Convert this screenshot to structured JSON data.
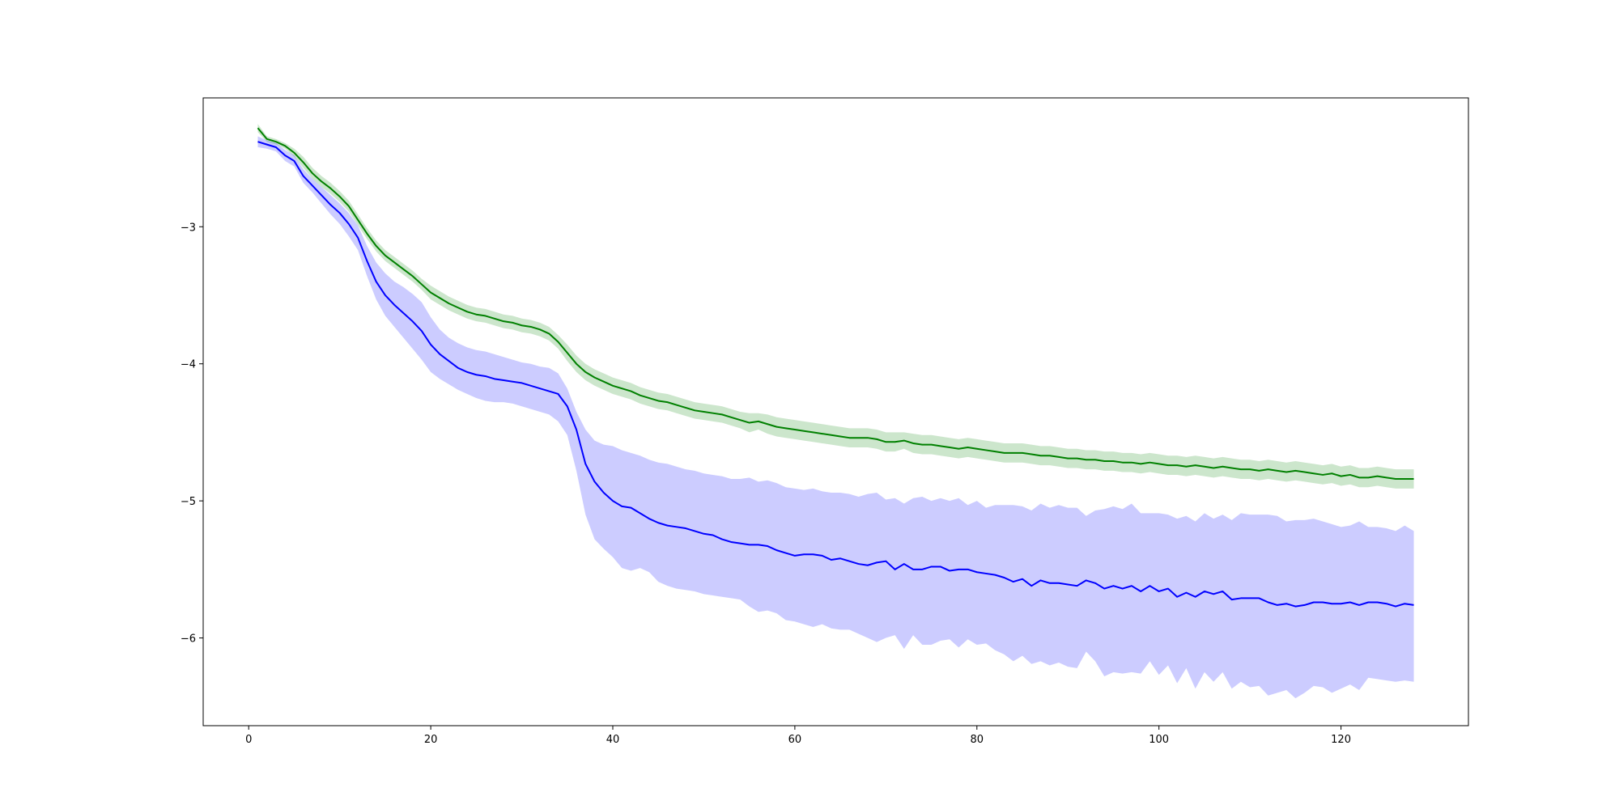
{
  "chart_data": {
    "type": "line",
    "title": "",
    "xlabel": "",
    "ylabel": "",
    "xlim": [
      -5,
      134
    ],
    "ylim": [
      -6.64,
      -2.06
    ],
    "grid": false,
    "xticks": [
      0,
      20,
      40,
      60,
      80,
      100,
      120
    ],
    "yticks": [
      -6,
      -5,
      -4,
      -3
    ],
    "ytick_labels": [
      "−6",
      "−5",
      "−4",
      "−3"
    ],
    "series": [
      {
        "color": "#008000",
        "band_color": "#008000",
        "band_opacity": 0.2,
        "x": [
          1,
          2,
          3,
          4,
          5,
          6,
          7,
          8,
          9,
          10,
          11,
          12,
          13,
          14,
          15,
          16,
          17,
          18,
          19,
          20,
          21,
          22,
          23,
          24,
          25,
          26,
          27,
          28,
          29,
          30,
          31,
          32,
          33,
          34,
          35,
          36,
          37,
          38,
          39,
          40,
          41,
          42,
          43,
          44,
          45,
          46,
          47,
          48,
          49,
          50,
          51,
          52,
          53,
          54,
          55,
          56,
          57,
          58,
          59,
          60,
          61,
          62,
          63,
          64,
          65,
          66,
          67,
          68,
          69,
          70,
          71,
          72,
          73,
          74,
          75,
          76,
          77,
          78,
          79,
          80,
          81,
          82,
          83,
          84,
          85,
          86,
          87,
          88,
          89,
          90,
          91,
          92,
          93,
          94,
          95,
          96,
          97,
          98,
          99,
          100,
          101,
          102,
          103,
          104,
          105,
          106,
          107,
          108,
          109,
          110,
          111,
          112,
          113,
          114,
          115,
          116,
          117,
          118,
          119,
          120,
          121,
          122,
          123,
          124,
          125,
          126,
          127,
          128
        ],
        "y": [
          -2.28,
          -2.36,
          -2.38,
          -2.41,
          -2.46,
          -2.53,
          -2.61,
          -2.67,
          -2.72,
          -2.78,
          -2.85,
          -2.95,
          -3.05,
          -3.14,
          -3.21,
          -3.26,
          -3.31,
          -3.36,
          -3.42,
          -3.48,
          -3.52,
          -3.56,
          -3.59,
          -3.62,
          -3.64,
          -3.65,
          -3.67,
          -3.69,
          -3.7,
          -3.72,
          -3.73,
          -3.75,
          -3.78,
          -3.84,
          -3.92,
          -4.0,
          -4.06,
          -4.1,
          -4.13,
          -4.16,
          -4.18,
          -4.2,
          -4.23,
          -4.25,
          -4.27,
          -4.28,
          -4.3,
          -4.32,
          -4.34,
          -4.35,
          -4.36,
          -4.37,
          -4.39,
          -4.41,
          -4.43,
          -4.42,
          -4.44,
          -4.46,
          -4.47,
          -4.48,
          -4.49,
          -4.5,
          -4.51,
          -4.52,
          -4.53,
          -4.54,
          -4.54,
          -4.54,
          -4.55,
          -4.57,
          -4.57,
          -4.56,
          -4.58,
          -4.59,
          -4.59,
          -4.6,
          -4.61,
          -4.62,
          -4.61,
          -4.62,
          -4.63,
          -4.64,
          -4.65,
          -4.65,
          -4.65,
          -4.66,
          -4.67,
          -4.67,
          -4.68,
          -4.69,
          -4.69,
          -4.7,
          -4.7,
          -4.71,
          -4.71,
          -4.72,
          -4.72,
          -4.73,
          -4.72,
          -4.73,
          -4.74,
          -4.74,
          -4.75,
          -4.74,
          -4.75,
          -4.76,
          -4.75,
          -4.76,
          -4.77,
          -4.77,
          -4.78,
          -4.77,
          -4.78,
          -4.79,
          -4.78,
          -4.79,
          -4.8,
          -4.81,
          -4.8,
          -4.82,
          -4.81,
          -4.83,
          -4.83,
          -4.82,
          -4.83,
          -4.84,
          -4.84,
          -4.84
        ],
        "upper": [
          -2.25,
          -2.34,
          -2.36,
          -2.39,
          -2.43,
          -2.49,
          -2.57,
          -2.63,
          -2.68,
          -2.74,
          -2.81,
          -2.91,
          -3.01,
          -3.1,
          -3.17,
          -3.22,
          -3.27,
          -3.32,
          -3.38,
          -3.43,
          -3.47,
          -3.51,
          -3.54,
          -3.57,
          -3.59,
          -3.6,
          -3.62,
          -3.64,
          -3.65,
          -3.67,
          -3.68,
          -3.7,
          -3.73,
          -3.79,
          -3.86,
          -3.94,
          -4.0,
          -4.04,
          -4.07,
          -4.1,
          -4.12,
          -4.14,
          -4.17,
          -4.19,
          -4.21,
          -4.22,
          -4.24,
          -4.26,
          -4.28,
          -4.29,
          -4.3,
          -4.31,
          -4.33,
          -4.35,
          -4.36,
          -4.36,
          -4.37,
          -4.39,
          -4.4,
          -4.41,
          -4.42,
          -4.43,
          -4.44,
          -4.45,
          -4.46,
          -4.47,
          -4.47,
          -4.47,
          -4.48,
          -4.5,
          -4.5,
          -4.5,
          -4.51,
          -4.52,
          -4.52,
          -4.53,
          -4.54,
          -4.55,
          -4.54,
          -4.55,
          -4.56,
          -4.57,
          -4.58,
          -4.58,
          -4.58,
          -4.59,
          -4.6,
          -4.6,
          -4.61,
          -4.62,
          -4.62,
          -4.63,
          -4.63,
          -4.64,
          -4.64,
          -4.65,
          -4.65,
          -4.66,
          -4.65,
          -4.66,
          -4.67,
          -4.67,
          -4.68,
          -4.67,
          -4.68,
          -4.69,
          -4.68,
          -4.69,
          -4.7,
          -4.7,
          -4.71,
          -4.7,
          -4.71,
          -4.72,
          -4.71,
          -4.72,
          -4.73,
          -4.74,
          -4.73,
          -4.75,
          -4.74,
          -4.76,
          -4.76,
          -4.75,
          -4.76,
          -4.77,
          -4.77,
          -4.77
        ],
        "lower": [
          -2.31,
          -2.38,
          -2.4,
          -2.43,
          -2.49,
          -2.57,
          -2.65,
          -2.71,
          -2.76,
          -2.82,
          -2.89,
          -2.99,
          -3.09,
          -3.18,
          -3.25,
          -3.3,
          -3.35,
          -3.4,
          -3.46,
          -3.53,
          -3.57,
          -3.61,
          -3.64,
          -3.67,
          -3.69,
          -3.7,
          -3.72,
          -3.74,
          -3.75,
          -3.77,
          -3.78,
          -3.8,
          -3.83,
          -3.89,
          -3.98,
          -4.06,
          -4.12,
          -4.16,
          -4.19,
          -4.22,
          -4.24,
          -4.26,
          -4.29,
          -4.31,
          -4.33,
          -4.34,
          -4.36,
          -4.38,
          -4.4,
          -4.41,
          -4.42,
          -4.43,
          -4.45,
          -4.47,
          -4.5,
          -4.48,
          -4.51,
          -4.53,
          -4.54,
          -4.55,
          -4.56,
          -4.57,
          -4.58,
          -4.59,
          -4.6,
          -4.61,
          -4.61,
          -4.61,
          -4.62,
          -4.64,
          -4.64,
          -4.62,
          -4.65,
          -4.66,
          -4.66,
          -4.67,
          -4.68,
          -4.69,
          -4.68,
          -4.69,
          -4.7,
          -4.71,
          -4.72,
          -4.72,
          -4.72,
          -4.73,
          -4.74,
          -4.74,
          -4.75,
          -4.76,
          -4.76,
          -4.77,
          -4.77,
          -4.78,
          -4.78,
          -4.79,
          -4.79,
          -4.8,
          -4.79,
          -4.8,
          -4.81,
          -4.81,
          -4.82,
          -4.81,
          -4.82,
          -4.83,
          -4.82,
          -4.83,
          -4.84,
          -4.84,
          -4.85,
          -4.84,
          -4.85,
          -4.86,
          -4.85,
          -4.86,
          -4.87,
          -4.88,
          -4.87,
          -4.89,
          -4.88,
          -4.9,
          -4.9,
          -4.89,
          -4.9,
          -4.91,
          -4.91,
          -4.91
        ]
      },
      {
        "color": "#0000ff",
        "band_color": "#0000ff",
        "band_opacity": 0.2,
        "x": [
          1,
          2,
          3,
          4,
          5,
          6,
          7,
          8,
          9,
          10,
          11,
          12,
          13,
          14,
          15,
          16,
          17,
          18,
          19,
          20,
          21,
          22,
          23,
          24,
          25,
          26,
          27,
          28,
          29,
          30,
          31,
          32,
          33,
          34,
          35,
          36,
          37,
          38,
          39,
          40,
          41,
          42,
          43,
          44,
          45,
          46,
          47,
          48,
          49,
          50,
          51,
          52,
          53,
          54,
          55,
          56,
          57,
          58,
          59,
          60,
          61,
          62,
          63,
          64,
          65,
          66,
          67,
          68,
          69,
          70,
          71,
          72,
          73,
          74,
          75,
          76,
          77,
          78,
          79,
          80,
          81,
          82,
          83,
          84,
          85,
          86,
          87,
          88,
          89,
          90,
          91,
          92,
          93,
          94,
          95,
          96,
          97,
          98,
          99,
          100,
          101,
          102,
          103,
          104,
          105,
          106,
          107,
          108,
          109,
          110,
          111,
          112,
          113,
          114,
          115,
          116,
          117,
          118,
          119,
          120,
          121,
          122,
          123,
          124,
          125,
          126,
          127,
          128
        ],
        "y": [
          -2.38,
          -2.4,
          -2.42,
          -2.48,
          -2.52,
          -2.63,
          -2.7,
          -2.77,
          -2.84,
          -2.9,
          -2.98,
          -3.08,
          -3.25,
          -3.4,
          -3.5,
          -3.57,
          -3.63,
          -3.69,
          -3.76,
          -3.86,
          -3.93,
          -3.98,
          -4.03,
          -4.06,
          -4.08,
          -4.09,
          -4.11,
          -4.12,
          -4.13,
          -4.14,
          -4.16,
          -4.18,
          -4.2,
          -4.22,
          -4.31,
          -4.48,
          -4.73,
          -4.86,
          -4.94,
          -5.0,
          -5.04,
          -5.05,
          -5.09,
          -5.13,
          -5.16,
          -5.18,
          -5.19,
          -5.2,
          -5.22,
          -5.24,
          -5.25,
          -5.28,
          -5.3,
          -5.31,
          -5.32,
          -5.32,
          -5.33,
          -5.36,
          -5.38,
          -5.4,
          -5.39,
          -5.39,
          -5.4,
          -5.43,
          -5.42,
          -5.44,
          -5.46,
          -5.47,
          -5.45,
          -5.44,
          -5.5,
          -5.46,
          -5.5,
          -5.5,
          -5.48,
          -5.48,
          -5.51,
          -5.5,
          -5.5,
          -5.52,
          -5.53,
          -5.54,
          -5.56,
          -5.59,
          -5.57,
          -5.62,
          -5.58,
          -5.6,
          -5.6,
          -5.61,
          -5.62,
          -5.58,
          -5.6,
          -5.64,
          -5.62,
          -5.64,
          -5.62,
          -5.66,
          -5.62,
          -5.66,
          -5.64,
          -5.7,
          -5.67,
          -5.7,
          -5.66,
          -5.68,
          -5.66,
          -5.72,
          -5.71,
          -5.71,
          -5.71,
          -5.74,
          -5.76,
          -5.75,
          -5.77,
          -5.76,
          -5.74,
          -5.74,
          -5.75,
          -5.75,
          -5.74,
          -5.76,
          -5.74,
          -5.74,
          -5.75,
          -5.77,
          -5.75,
          -5.76
        ],
        "upper": [
          -2.34,
          -2.37,
          -2.39,
          -2.44,
          -2.48,
          -2.58,
          -2.65,
          -2.71,
          -2.77,
          -2.83,
          -2.9,
          -2.99,
          -3.14,
          -3.26,
          -3.34,
          -3.4,
          -3.44,
          -3.49,
          -3.55,
          -3.66,
          -3.75,
          -3.81,
          -3.85,
          -3.88,
          -3.9,
          -3.91,
          -3.93,
          -3.95,
          -3.97,
          -3.99,
          -4.0,
          -4.02,
          -4.03,
          -4.07,
          -4.18,
          -4.35,
          -4.48,
          -4.56,
          -4.59,
          -4.6,
          -4.63,
          -4.65,
          -4.67,
          -4.7,
          -4.72,
          -4.73,
          -4.75,
          -4.77,
          -4.78,
          -4.8,
          -4.81,
          -4.82,
          -4.84,
          -4.84,
          -4.83,
          -4.86,
          -4.85,
          -4.87,
          -4.9,
          -4.91,
          -4.92,
          -4.91,
          -4.93,
          -4.94,
          -4.94,
          -4.95,
          -4.97,
          -4.95,
          -4.94,
          -4.99,
          -4.98,
          -5.02,
          -4.98,
          -4.97,
          -5.0,
          -4.98,
          -5.0,
          -4.98,
          -5.03,
          -5.0,
          -5.05,
          -5.03,
          -5.03,
          -5.03,
          -5.04,
          -5.07,
          -5.02,
          -5.05,
          -5.03,
          -5.05,
          -5.05,
          -5.11,
          -5.07,
          -5.06,
          -5.04,
          -5.06,
          -5.02,
          -5.09,
          -5.09,
          -5.09,
          -5.1,
          -5.13,
          -5.11,
          -5.15,
          -5.09,
          -5.13,
          -5.1,
          -5.14,
          -5.09,
          -5.1,
          -5.1,
          -5.1,
          -5.11,
          -5.15,
          -5.14,
          -5.14,
          -5.13,
          -5.15,
          -5.17,
          -5.19,
          -5.18,
          -5.15,
          -5.19,
          -5.19,
          -5.2,
          -5.22,
          -5.18,
          -5.22
        ],
        "lower": [
          -2.42,
          -2.43,
          -2.45,
          -2.52,
          -2.56,
          -2.68,
          -2.75,
          -2.83,
          -2.91,
          -2.98,
          -3.07,
          -3.17,
          -3.36,
          -3.53,
          -3.65,
          -3.73,
          -3.81,
          -3.89,
          -3.97,
          -4.06,
          -4.11,
          -4.15,
          -4.19,
          -4.22,
          -4.25,
          -4.27,
          -4.28,
          -4.28,
          -4.29,
          -4.31,
          -4.33,
          -4.35,
          -4.37,
          -4.42,
          -4.52,
          -4.78,
          -5.1,
          -5.28,
          -5.35,
          -5.41,
          -5.49,
          -5.51,
          -5.49,
          -5.52,
          -5.59,
          -5.62,
          -5.64,
          -5.65,
          -5.66,
          -5.68,
          -5.69,
          -5.7,
          -5.71,
          -5.72,
          -5.77,
          -5.81,
          -5.8,
          -5.82,
          -5.87,
          -5.88,
          -5.9,
          -5.92,
          -5.9,
          -5.93,
          -5.94,
          -5.94,
          -5.97,
          -6.0,
          -6.03,
          -6.0,
          -5.98,
          -6.08,
          -5.98,
          -6.05,
          -6.05,
          -6.02,
          -6.01,
          -6.07,
          -6.01,
          -6.05,
          -6.04,
          -6.09,
          -6.12,
          -6.17,
          -6.13,
          -6.19,
          -6.17,
          -6.2,
          -6.18,
          -6.21,
          -6.22,
          -6.1,
          -6.17,
          -6.28,
          -6.25,
          -6.26,
          -6.25,
          -6.26,
          -6.17,
          -6.27,
          -6.2,
          -6.33,
          -6.22,
          -6.37,
          -6.25,
          -6.32,
          -6.25,
          -6.37,
          -6.32,
          -6.36,
          -6.35,
          -6.42,
          -6.4,
          -6.38,
          -6.44,
          -6.4,
          -6.35,
          -6.36,
          -6.4,
          -6.37,
          -6.34,
          -6.38,
          -6.29,
          -6.3,
          -6.31,
          -6.32,
          -6.31,
          -6.32
        ]
      }
    ]
  }
}
